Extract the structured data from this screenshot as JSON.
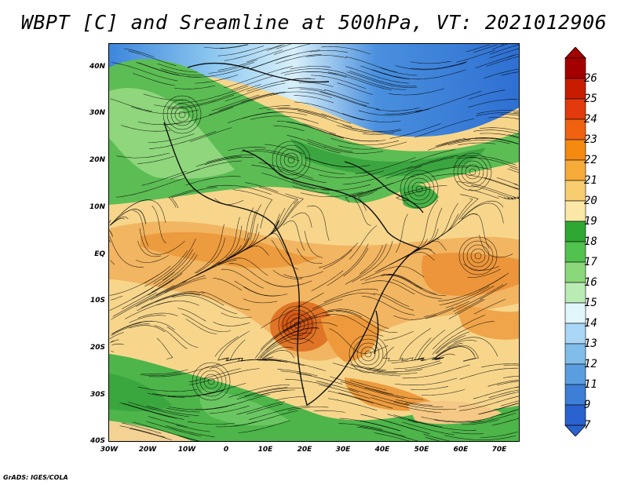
{
  "title": "WBPT [C] and Sreamline at 500hPa, VT: 2021012906",
  "credit": "GrADS: IGES/COLA",
  "lat_labels": [
    "40N",
    "30N",
    "20N",
    "10N",
    "EQ",
    "10S",
    "20S",
    "30S",
    "40S"
  ],
  "lon_labels": [
    "30W",
    "20W",
    "10W",
    "0",
    "10E",
    "20E",
    "30E",
    "40E",
    "50E",
    "60E",
    "70E"
  ],
  "colorbar": {
    "labels": [
      "26",
      "25",
      "24",
      "23",
      "22",
      "21",
      "20",
      "19",
      "18",
      "17",
      "16",
      "15",
      "14",
      "13",
      "12",
      "11",
      "9",
      "7"
    ],
    "colors": [
      "#a50000",
      "#c81c00",
      "#e23a0c",
      "#f0620f",
      "#f58a10",
      "#f7ab38",
      "#f7cd70",
      "#fbe8a6",
      "#2fa833",
      "#52c24e",
      "#8ad879",
      "#b8ecb4",
      "#e0f6fb",
      "#a9d6f5",
      "#80bde9",
      "#5b9ee0",
      "#3d7fd6",
      "#2a63cf"
    ]
  },
  "map": {
    "lat_range": [
      -40,
      45
    ],
    "lon_range": [
      -30,
      75
    ],
    "wbpt_zones": [
      {
        "name": "cold-north",
        "value_c": 9,
        "colors": [
          "#2e70d4",
          "#5fa2e3",
          "#a6d4f2"
        ]
      },
      {
        "name": "green-north",
        "value_c": 17,
        "colors": [
          "#3aa83c",
          "#61c45a",
          "#9fdc8f"
        ]
      },
      {
        "name": "tan-tropics",
        "value_c": 19,
        "colors": [
          "#f7d98f",
          "#f2c572",
          "#fbe8b0"
        ]
      },
      {
        "name": "orange-hot",
        "value_c": 22,
        "colors": [
          "#ee9a3c",
          "#e07a22",
          "#f2a955"
        ]
      },
      {
        "name": "green-south",
        "value_c": 17,
        "colors": [
          "#3aa83c",
          "#5dbf55",
          "#8fd27f"
        ]
      }
    ]
  }
}
